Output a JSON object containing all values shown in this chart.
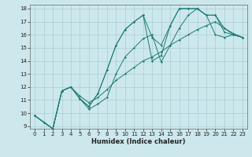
{
  "xlabel": "Humidex (Indice chaleur)",
  "bg_color": "#cce8ec",
  "grid_color": "#aacdd4",
  "line_color": "#1e7b72",
  "xlim": [
    -0.5,
    23.5
  ],
  "ylim": [
    8.8,
    18.3
  ],
  "yticks": [
    9,
    10,
    11,
    12,
    13,
    14,
    15,
    16,
    17,
    18
  ],
  "xticks": [
    0,
    1,
    2,
    3,
    4,
    5,
    6,
    7,
    8,
    9,
    10,
    11,
    12,
    13,
    14,
    15,
    16,
    17,
    18,
    19,
    20,
    21,
    22,
    23
  ],
  "tick_fontsize": 5.0,
  "xlabel_fontsize": 6.0,
  "lines": [
    {
      "x": [
        0,
        1,
        2,
        3,
        4,
        5,
        6,
        7,
        8,
        9,
        10,
        11,
        12,
        13,
        14,
        15,
        16,
        17,
        18,
        19,
        20,
        21,
        22,
        23
      ],
      "y": [
        9.8,
        9.3,
        8.8,
        11.7,
        12.0,
        11.1,
        10.5,
        11.5,
        13.3,
        15.2,
        16.4,
        17.0,
        17.5,
        14.0,
        14.4,
        16.7,
        18.0,
        18.0,
        18.0,
        17.5,
        16.0,
        15.8,
        16.0,
        15.8
      ]
    },
    {
      "x": [
        0,
        1,
        2,
        3,
        4,
        5,
        6,
        7,
        8,
        9,
        10,
        11,
        12,
        13,
        14,
        15,
        16,
        17,
        18,
        19,
        20,
        21,
        22,
        23
      ],
      "y": [
        9.8,
        9.3,
        8.8,
        11.7,
        12.0,
        11.1,
        10.5,
        11.5,
        13.3,
        15.2,
        16.4,
        17.0,
        17.5,
        15.8,
        15.2,
        16.7,
        18.0,
        18.0,
        18.0,
        17.5,
        17.5,
        16.2,
        16.0,
        15.8
      ]
    },
    {
      "x": [
        0,
        1,
        2,
        3,
        4,
        5,
        6,
        7,
        8,
        9,
        10,
        11,
        12,
        13,
        14,
        15,
        16,
        17,
        18,
        19,
        20,
        21,
        22,
        23
      ],
      "y": [
        9.8,
        9.3,
        8.8,
        11.7,
        12.0,
        11.3,
        10.8,
        11.2,
        11.8,
        12.5,
        13.0,
        13.5,
        14.0,
        14.3,
        14.7,
        15.2,
        15.6,
        16.0,
        16.4,
        16.7,
        17.0,
        16.5,
        16.1,
        15.8
      ]
    },
    {
      "x": [
        0,
        1,
        2,
        3,
        4,
        5,
        6,
        7,
        8,
        9,
        10,
        11,
        12,
        13,
        14,
        15,
        16,
        17,
        18,
        19,
        20,
        21,
        22,
        23
      ],
      "y": [
        9.8,
        9.3,
        8.8,
        11.7,
        12.0,
        11.1,
        10.3,
        10.7,
        11.2,
        13.0,
        14.3,
        15.0,
        15.7,
        16.0,
        13.9,
        15.2,
        16.5,
        17.5,
        18.0,
        17.5,
        17.5,
        16.5,
        16.0,
        15.8
      ]
    }
  ]
}
